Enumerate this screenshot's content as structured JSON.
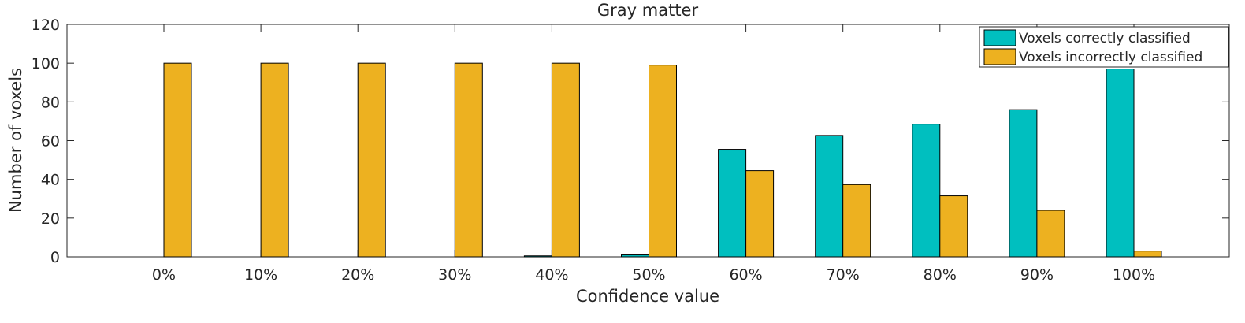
{
  "chart_data": {
    "type": "bar",
    "title": "Gray matter",
    "xlabel": "Confidence value",
    "ylabel": "Number of voxels",
    "categories": [
      "0%",
      "10%",
      "20%",
      "30%",
      "40%",
      "50%",
      "60%",
      "70%",
      "80%",
      "90%",
      "100%"
    ],
    "series": [
      {
        "name": "Voxels correctly classified",
        "color": "#00BFBF",
        "values": [
          0,
          0,
          0,
          0,
          0.5,
          1,
          55.5,
          62.7,
          68.5,
          76,
          97
        ]
      },
      {
        "name": "Voxels incorrectly classified",
        "color": "#EDB120",
        "values": [
          100,
          100,
          100,
          100,
          100,
          99,
          44.5,
          37.3,
          31.5,
          24,
          3
        ]
      }
    ],
    "ylim": [
      0,
      120
    ],
    "yticks": [
      0,
      20,
      40,
      60,
      80,
      100,
      120
    ],
    "legend_position": "top-right",
    "grid": false
  }
}
